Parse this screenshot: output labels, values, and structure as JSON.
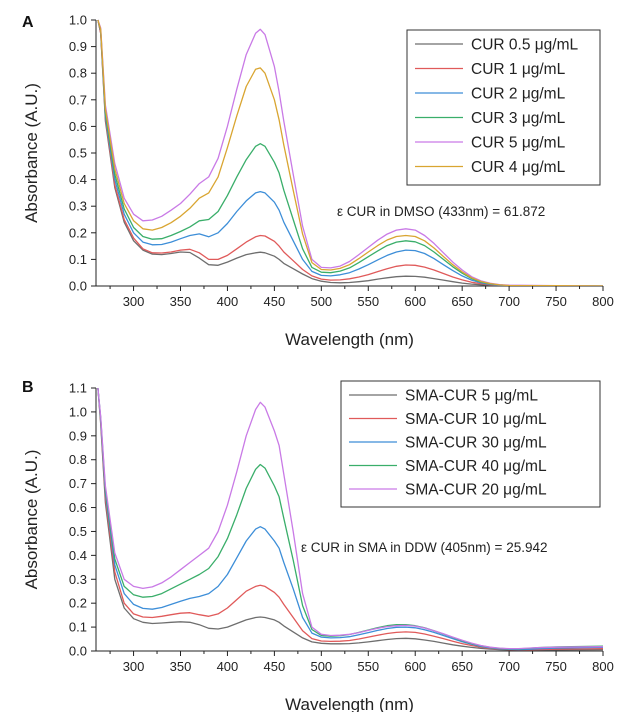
{
  "chart_data": [
    {
      "panel": "A",
      "type": "line",
      "xlabel": "Wavelength (nm)",
      "ylabel": "Absorbance (A.U.)",
      "xlim": [
        260,
        800
      ],
      "ylim": [
        0,
        1.0
      ],
      "xticks": [
        300,
        350,
        400,
        450,
        500,
        550,
        600,
        650,
        700,
        750,
        800
      ],
      "yticks": [
        "0.0",
        "0.1",
        "0.2",
        "0.3",
        "0.4",
        "0.5",
        "0.6",
        "0.7",
        "0.8",
        "0.9",
        "1.0"
      ],
      "grid": false,
      "legend_position": "top-right",
      "annotation": "ε CUR in DMSO (433nm) = 61.872",
      "x": [
        262,
        265,
        270,
        280,
        290,
        300,
        310,
        320,
        330,
        340,
        350,
        360,
        370,
        380,
        390,
        400,
        410,
        420,
        430,
        435,
        440,
        450,
        455,
        460,
        470,
        480,
        490,
        500,
        510,
        520,
        530,
        540,
        550,
        560,
        570,
        580,
        590,
        600,
        610,
        620,
        630,
        640,
        650,
        660,
        670,
        680,
        690,
        700,
        750,
        800
      ],
      "series": [
        {
          "name": "CUR 0.5 μg/mL",
          "color": "#6e6e6e",
          "values": [
            1.0,
            0.95,
            0.62,
            0.37,
            0.24,
            0.17,
            0.135,
            0.12,
            0.118,
            0.122,
            0.128,
            0.126,
            0.105,
            0.08,
            0.078,
            0.09,
            0.105,
            0.118,
            0.125,
            0.127,
            0.125,
            0.112,
            0.1,
            0.085,
            0.065,
            0.045,
            0.028,
            0.018,
            0.013,
            0.012,
            0.013,
            0.016,
            0.02,
            0.026,
            0.031,
            0.035,
            0.037,
            0.036,
            0.033,
            0.028,
            0.022,
            0.016,
            0.011,
            0.007,
            0.005,
            0.003,
            0.002,
            0.001,
            0.001,
            0.0
          ]
        },
        {
          "name": "CUR 1 μg/mL",
          "color": "#e05a5a",
          "values": [
            1.0,
            0.95,
            0.63,
            0.38,
            0.25,
            0.18,
            0.14,
            0.125,
            0.124,
            0.128,
            0.135,
            0.138,
            0.125,
            0.1,
            0.1,
            0.115,
            0.14,
            0.165,
            0.185,
            0.19,
            0.188,
            0.168,
            0.15,
            0.128,
            0.095,
            0.062,
            0.038,
            0.026,
            0.022,
            0.023,
            0.027,
            0.034,
            0.043,
            0.054,
            0.065,
            0.074,
            0.079,
            0.078,
            0.071,
            0.06,
            0.047,
            0.034,
            0.023,
            0.014,
            0.009,
            0.005,
            0.003,
            0.002,
            0.001,
            0.0
          ]
        },
        {
          "name": "CUR 2 μg/mL",
          "color": "#3d8ed8",
          "values": [
            1.0,
            0.96,
            0.64,
            0.4,
            0.27,
            0.2,
            0.165,
            0.155,
            0.156,
            0.165,
            0.178,
            0.19,
            0.196,
            0.185,
            0.2,
            0.235,
            0.28,
            0.32,
            0.35,
            0.355,
            0.35,
            0.315,
            0.285,
            0.24,
            0.17,
            0.1,
            0.055,
            0.04,
            0.038,
            0.042,
            0.05,
            0.064,
            0.08,
            0.098,
            0.115,
            0.128,
            0.135,
            0.133,
            0.122,
            0.103,
            0.08,
            0.058,
            0.038,
            0.022,
            0.012,
            0.006,
            0.003,
            0.002,
            0.001,
            0.0
          ]
        },
        {
          "name": "CUR 3 μg/mL",
          "color": "#3aae6a",
          "values": [
            1.0,
            0.96,
            0.65,
            0.42,
            0.29,
            0.22,
            0.186,
            0.176,
            0.178,
            0.19,
            0.205,
            0.222,
            0.245,
            0.25,
            0.28,
            0.34,
            0.41,
            0.475,
            0.525,
            0.535,
            0.525,
            0.465,
            0.425,
            0.36,
            0.25,
            0.14,
            0.07,
            0.052,
            0.05,
            0.056,
            0.068,
            0.088,
            0.11,
            0.132,
            0.152,
            0.165,
            0.17,
            0.166,
            0.152,
            0.128,
            0.1,
            0.072,
            0.048,
            0.028,
            0.015,
            0.008,
            0.004,
            0.002,
            0.001,
            0.0
          ]
        },
        {
          "name": "CUR 5 μg/mL",
          "color": "#c97ae6",
          "values": [
            1.0,
            0.97,
            0.68,
            0.46,
            0.33,
            0.27,
            0.245,
            0.248,
            0.262,
            0.285,
            0.31,
            0.345,
            0.385,
            0.41,
            0.48,
            0.6,
            0.74,
            0.87,
            0.95,
            0.965,
            0.945,
            0.825,
            0.73,
            0.62,
            0.42,
            0.225,
            0.1,
            0.07,
            0.068,
            0.075,
            0.092,
            0.118,
            0.145,
            0.172,
            0.195,
            0.21,
            0.215,
            0.21,
            0.19,
            0.16,
            0.125,
            0.09,
            0.06,
            0.035,
            0.019,
            0.01,
            0.005,
            0.003,
            0.001,
            0.0
          ]
        },
        {
          "name": "CUR 4 μg/mL",
          "color": "#d9a531",
          "values": [
            1.0,
            0.965,
            0.665,
            0.44,
            0.31,
            0.245,
            0.215,
            0.21,
            0.22,
            0.238,
            0.262,
            0.292,
            0.33,
            0.35,
            0.41,
            0.52,
            0.64,
            0.75,
            0.815,
            0.82,
            0.8,
            0.7,
            0.625,
            0.53,
            0.36,
            0.195,
            0.088,
            0.062,
            0.06,
            0.066,
            0.08,
            0.103,
            0.128,
            0.152,
            0.173,
            0.186,
            0.19,
            0.186,
            0.17,
            0.143,
            0.111,
            0.08,
            0.053,
            0.031,
            0.017,
            0.009,
            0.004,
            0.002,
            0.001,
            0.0
          ]
        }
      ]
    },
    {
      "panel": "B",
      "type": "line",
      "xlabel": "Wavelength (nm)",
      "ylabel": "Absorbance (A.U.)",
      "xlim": [
        260,
        800
      ],
      "ylim": [
        0,
        1.1
      ],
      "xticks": [
        300,
        350,
        400,
        450,
        500,
        550,
        600,
        650,
        700,
        750,
        800
      ],
      "yticks": [
        "0.0",
        "0.1",
        "0.2",
        "0.3",
        "0.4",
        "0.5",
        "0.6",
        "0.7",
        "0.8",
        "0.9",
        "1.0",
        "1.1"
      ],
      "grid": false,
      "legend_position": "top-right",
      "annotation": "ε CUR in SMA in DDW (405nm) = 25.942",
      "x": [
        262,
        265,
        270,
        280,
        290,
        300,
        310,
        320,
        330,
        340,
        350,
        360,
        370,
        380,
        390,
        400,
        410,
        420,
        430,
        435,
        440,
        450,
        455,
        460,
        470,
        480,
        490,
        500,
        510,
        520,
        530,
        540,
        550,
        560,
        570,
        580,
        590,
        600,
        610,
        620,
        630,
        640,
        650,
        660,
        670,
        680,
        690,
        700,
        710,
        720,
        730,
        750,
        800
      ],
      "series": [
        {
          "name": "SMA-CUR 5 μg/mL",
          "color": "#6e6e6e",
          "values": [
            1.1,
            0.95,
            0.62,
            0.3,
            0.18,
            0.135,
            0.12,
            0.115,
            0.117,
            0.12,
            0.122,
            0.12,
            0.11,
            0.095,
            0.092,
            0.1,
            0.115,
            0.13,
            0.14,
            0.142,
            0.14,
            0.13,
            0.12,
            0.105,
            0.08,
            0.055,
            0.038,
            0.032,
            0.03,
            0.03,
            0.031,
            0.034,
            0.038,
            0.043,
            0.048,
            0.052,
            0.053,
            0.051,
            0.046,
            0.04,
            0.033,
            0.026,
            0.02,
            0.015,
            0.011,
            0.008,
            0.006,
            0.005,
            0.004,
            0.004,
            0.004,
            0.005,
            0.006
          ]
        },
        {
          "name": "SMA-CUR 10 μg/mL",
          "color": "#e05a5a",
          "values": [
            1.1,
            0.96,
            0.64,
            0.33,
            0.2,
            0.155,
            0.142,
            0.14,
            0.145,
            0.152,
            0.158,
            0.16,
            0.152,
            0.145,
            0.155,
            0.18,
            0.215,
            0.25,
            0.27,
            0.275,
            0.27,
            0.245,
            0.225,
            0.195,
            0.14,
            0.085,
            0.052,
            0.042,
            0.04,
            0.041,
            0.044,
            0.05,
            0.058,
            0.066,
            0.073,
            0.078,
            0.08,
            0.078,
            0.071,
            0.062,
            0.052,
            0.041,
            0.031,
            0.023,
            0.016,
            0.011,
            0.008,
            0.006,
            0.005,
            0.005,
            0.006,
            0.008,
            0.01
          ]
        },
        {
          "name": "SMA-CUR 30 μg/mL",
          "color": "#3d8ed8",
          "values": [
            1.1,
            0.97,
            0.66,
            0.36,
            0.24,
            0.195,
            0.178,
            0.175,
            0.182,
            0.195,
            0.208,
            0.22,
            0.228,
            0.24,
            0.27,
            0.32,
            0.39,
            0.46,
            0.51,
            0.52,
            0.51,
            0.46,
            0.43,
            0.37,
            0.26,
            0.14,
            0.075,
            0.058,
            0.055,
            0.056,
            0.06,
            0.068,
            0.077,
            0.086,
            0.094,
            0.099,
            0.1,
            0.097,
            0.089,
            0.078,
            0.065,
            0.052,
            0.039,
            0.028,
            0.019,
            0.013,
            0.009,
            0.007,
            0.006,
            0.007,
            0.009,
            0.012,
            0.015
          ]
        },
        {
          "name": "SMA-CUR 40 μg/mL",
          "color": "#3aae6a",
          "values": [
            1.1,
            0.975,
            0.675,
            0.385,
            0.27,
            0.235,
            0.225,
            0.228,
            0.24,
            0.26,
            0.28,
            0.3,
            0.32,
            0.345,
            0.395,
            0.47,
            0.57,
            0.68,
            0.76,
            0.78,
            0.765,
            0.69,
            0.645,
            0.555,
            0.38,
            0.19,
            0.09,
            0.065,
            0.062,
            0.064,
            0.069,
            0.078,
            0.088,
            0.098,
            0.106,
            0.11,
            0.11,
            0.106,
            0.097,
            0.085,
            0.071,
            0.057,
            0.043,
            0.031,
            0.022,
            0.015,
            0.011,
            0.009,
            0.009,
            0.011,
            0.014,
            0.017,
            0.02
          ]
        },
        {
          "name": "SMA-CUR 20 μg/mL",
          "color": "#c97ae6",
          "values": [
            1.1,
            0.98,
            0.69,
            0.41,
            0.3,
            0.27,
            0.262,
            0.268,
            0.285,
            0.31,
            0.34,
            0.37,
            0.4,
            0.43,
            0.5,
            0.61,
            0.75,
            0.9,
            1.01,
            1.04,
            1.02,
            0.92,
            0.86,
            0.74,
            0.5,
            0.24,
            0.1,
            0.07,
            0.065,
            0.066,
            0.07,
            0.077,
            0.086,
            0.095,
            0.102,
            0.106,
            0.107,
            0.104,
            0.096,
            0.085,
            0.072,
            0.058,
            0.045,
            0.033,
            0.023,
            0.016,
            0.012,
            0.01,
            0.01,
            0.012,
            0.014,
            0.016,
            0.018
          ]
        }
      ]
    }
  ]
}
